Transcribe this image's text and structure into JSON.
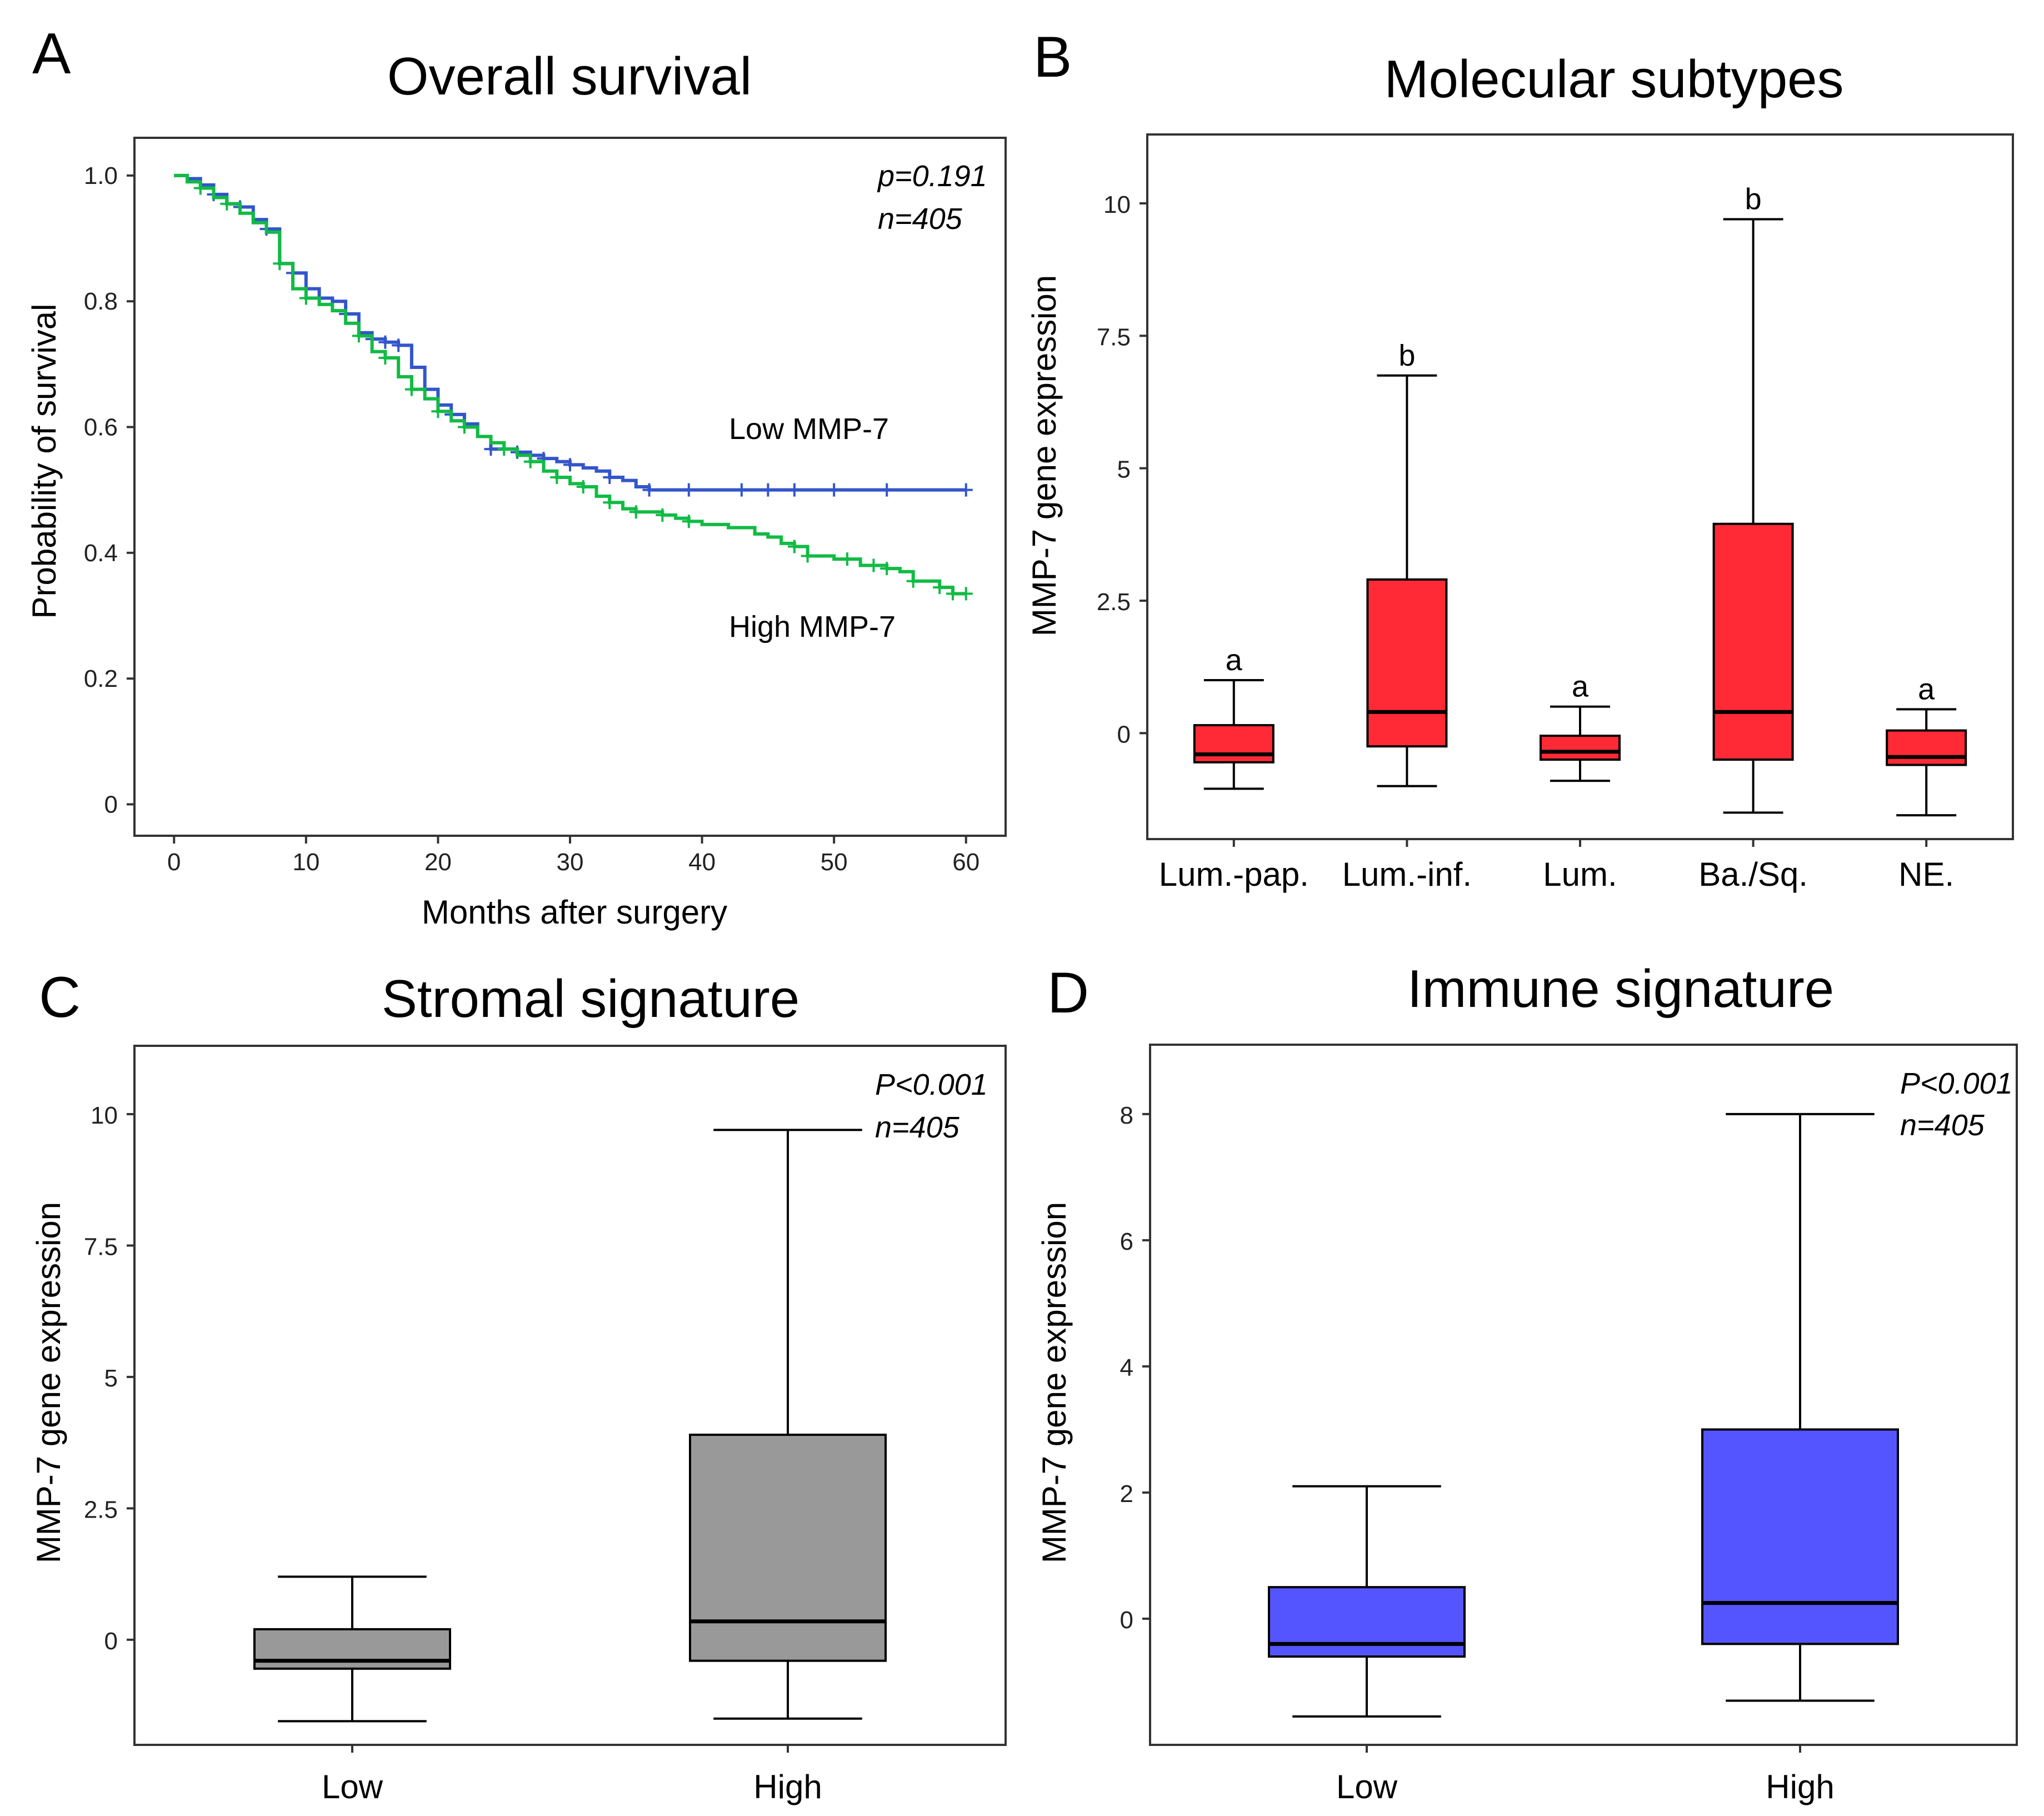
{
  "colors": {
    "low_curve": "#3355cc",
    "high_curve": "#11bb44",
    "subtype_box": "#ff2a35",
    "stromal_box": "#999999",
    "immune_box": "#5555ff",
    "median": "#000000"
  },
  "chart_data": [
    {
      "id": "A",
      "type": "line",
      "panel_letter": "A",
      "title": "Overall survival",
      "xlabel": "Months after surgery",
      "ylabel": "Probability of survival",
      "xlim": [
        -3,
        63
      ],
      "ylim": [
        -0.05,
        1.06
      ],
      "xticks": [
        0,
        10,
        20,
        30,
        40,
        50,
        60
      ],
      "xtick_labels": [
        "0",
        "10",
        "20",
        "30",
        "40",
        "50",
        "60"
      ],
      "yticks": [
        0,
        0.2,
        0.4,
        0.6,
        0.8,
        1.0
      ],
      "ytick_labels": [
        "0",
        "0.2",
        "0.4",
        "0.6",
        "0.8",
        "1.0"
      ],
      "annotations": [
        "p=0.191",
        "n=405"
      ],
      "series": [
        {
          "name": "Low MMP-7",
          "color": "#3355cc",
          "steps": [
            [
              0,
              1.0
            ],
            [
              1,
              0.995
            ],
            [
              2,
              0.985
            ],
            [
              3,
              0.97
            ],
            [
              4,
              0.955
            ],
            [
              5,
              0.95
            ],
            [
              6,
              0.93
            ],
            [
              7,
              0.915
            ],
            [
              8,
              0.86
            ],
            [
              9,
              0.845
            ],
            [
              10,
              0.82
            ],
            [
              11,
              0.805
            ],
            [
              12,
              0.8
            ],
            [
              13,
              0.78
            ],
            [
              14,
              0.75
            ],
            [
              15,
              0.74
            ],
            [
              16,
              0.735
            ],
            [
              17,
              0.73
            ],
            [
              18,
              0.695
            ],
            [
              19,
              0.66
            ],
            [
              20,
              0.635
            ],
            [
              21,
              0.62
            ],
            [
              22,
              0.605
            ],
            [
              23,
              0.585
            ],
            [
              24,
              0.565
            ],
            [
              25,
              0.565
            ],
            [
              26,
              0.56
            ],
            [
              27,
              0.555
            ],
            [
              28,
              0.55
            ],
            [
              29,
              0.545
            ],
            [
              30,
              0.54
            ],
            [
              31,
              0.535
            ],
            [
              32,
              0.53
            ],
            [
              33,
              0.52
            ],
            [
              34,
              0.515
            ],
            [
              35,
              0.505
            ],
            [
              36,
              0.5
            ],
            [
              60,
              0.5
            ]
          ],
          "censor_x": [
            3,
            5,
            7,
            9,
            11,
            13,
            15,
            16,
            17,
            19,
            21,
            24,
            26,
            28,
            30,
            33,
            36,
            39,
            43,
            45,
            47,
            50,
            54,
            60
          ]
        },
        {
          "name": "High MMP-7",
          "color": "#11bb44",
          "steps": [
            [
              0,
              1.0
            ],
            [
              1,
              0.99
            ],
            [
              2,
              0.98
            ],
            [
              3,
              0.965
            ],
            [
              4,
              0.955
            ],
            [
              5,
              0.94
            ],
            [
              6,
              0.925
            ],
            [
              7,
              0.91
            ],
            [
              8,
              0.86
            ],
            [
              9,
              0.82
            ],
            [
              10,
              0.805
            ],
            [
              11,
              0.795
            ],
            [
              12,
              0.785
            ],
            [
              13,
              0.765
            ],
            [
              14,
              0.745
            ],
            [
              15,
              0.72
            ],
            [
              16,
              0.71
            ],
            [
              17,
              0.68
            ],
            [
              18,
              0.66
            ],
            [
              19,
              0.645
            ],
            [
              20,
              0.625
            ],
            [
              21,
              0.61
            ],
            [
              22,
              0.6
            ],
            [
              23,
              0.585
            ],
            [
              24,
              0.575
            ],
            [
              25,
              0.565
            ],
            [
              26,
              0.555
            ],
            [
              27,
              0.545
            ],
            [
              28,
              0.53
            ],
            [
              29,
              0.52
            ],
            [
              30,
              0.51
            ],
            [
              31,
              0.505
            ],
            [
              32,
              0.49
            ],
            [
              33,
              0.48
            ],
            [
              34,
              0.47
            ],
            [
              35,
              0.465
            ],
            [
              37,
              0.46
            ],
            [
              38,
              0.455
            ],
            [
              39,
              0.45
            ],
            [
              40,
              0.445
            ],
            [
              42,
              0.44
            ],
            [
              44,
              0.43
            ],
            [
              45,
              0.425
            ],
            [
              46,
              0.415
            ],
            [
              47,
              0.41
            ],
            [
              48,
              0.395
            ],
            [
              50,
              0.39
            ],
            [
              52,
              0.38
            ],
            [
              54,
              0.375
            ],
            [
              55,
              0.37
            ],
            [
              56,
              0.355
            ],
            [
              58,
              0.345
            ],
            [
              59,
              0.335
            ],
            [
              60,
              0.335
            ]
          ],
          "censor_x": [
            2,
            4,
            8,
            10,
            14,
            16,
            18,
            20,
            22,
            25,
            27,
            29,
            31,
            33,
            35,
            37,
            39,
            47,
            48,
            51,
            53,
            54,
            56,
            58,
            59,
            60
          ]
        }
      ],
      "series_labels": [
        "Low MMP-7",
        "High MMP-7"
      ]
    },
    {
      "id": "B",
      "type": "box",
      "panel_letter": "B",
      "title": "Molecular subtypes",
      "xlabel": "",
      "ylabel": "MMP-7 gene expression",
      "ylim": [
        -2.0,
        11.3
      ],
      "yticks": [
        0,
        2.5,
        5,
        7.5,
        10
      ],
      "ytick_labels": [
        "0",
        "2.5",
        "5",
        "7.5",
        "10"
      ],
      "color": "#ff2a35",
      "categories": [
        "Lum.-pap.",
        "Lum.-inf.",
        "Lum.",
        "Ba./Sq.",
        "NE."
      ],
      "boxes": [
        {
          "whisker_low": -1.05,
          "q1": -0.55,
          "median": -0.4,
          "q3": 0.15,
          "whisker_high": 1.0,
          "group_letter": "a"
        },
        {
          "whisker_low": -1.0,
          "q1": -0.25,
          "median": 0.4,
          "q3": 2.9,
          "whisker_high": 6.75,
          "group_letter": "b"
        },
        {
          "whisker_low": -0.9,
          "q1": -0.5,
          "median": -0.35,
          "q3": -0.05,
          "whisker_high": 0.5,
          "group_letter": "a"
        },
        {
          "whisker_low": -1.5,
          "q1": -0.5,
          "median": 0.4,
          "q3": 3.95,
          "whisker_high": 9.7,
          "group_letter": "b"
        },
        {
          "whisker_low": -1.55,
          "q1": -0.6,
          "median": -0.45,
          "q3": 0.05,
          "whisker_high": 0.45,
          "group_letter": "a"
        }
      ]
    },
    {
      "id": "C",
      "type": "box",
      "panel_letter": "C",
      "title": "Stromal signature",
      "xlabel": "",
      "ylabel": "MMP-7 gene expression",
      "ylim": [
        -2.0,
        11.3
      ],
      "yticks": [
        0,
        2.5,
        5,
        7.5,
        10
      ],
      "ytick_labels": [
        "0",
        "2.5",
        "5",
        "7.5",
        "10"
      ],
      "color": "#999999",
      "categories": [
        "Low",
        "High"
      ],
      "annotations": [
        "P<0.001",
        "n=405"
      ],
      "boxes": [
        {
          "whisker_low": -1.55,
          "q1": -0.55,
          "median": -0.4,
          "q3": 0.2,
          "whisker_high": 1.2
        },
        {
          "whisker_low": -1.5,
          "q1": -0.4,
          "median": 0.35,
          "q3": 3.9,
          "whisker_high": 9.7
        }
      ]
    },
    {
      "id": "D",
      "type": "box",
      "panel_letter": "D",
      "title": "Immune signature",
      "xlabel": "",
      "ylabel": "MMP-7 gene expression",
      "ylim": [
        -2.0,
        9.1
      ],
      "yticks": [
        0,
        2,
        4,
        6,
        8
      ],
      "ytick_labels": [
        "0",
        "2",
        "4",
        "6",
        "8"
      ],
      "color": "#5555ff",
      "categories": [
        "Low",
        "High"
      ],
      "annotations": [
        "P<0.001",
        "n=405"
      ],
      "boxes": [
        {
          "whisker_low": -1.55,
          "q1": -0.6,
          "median": -0.4,
          "q3": 0.5,
          "whisker_high": 2.1
        },
        {
          "whisker_low": -1.3,
          "q1": -0.4,
          "median": 0.25,
          "q3": 3.0,
          "whisker_high": 8.0
        }
      ]
    }
  ]
}
